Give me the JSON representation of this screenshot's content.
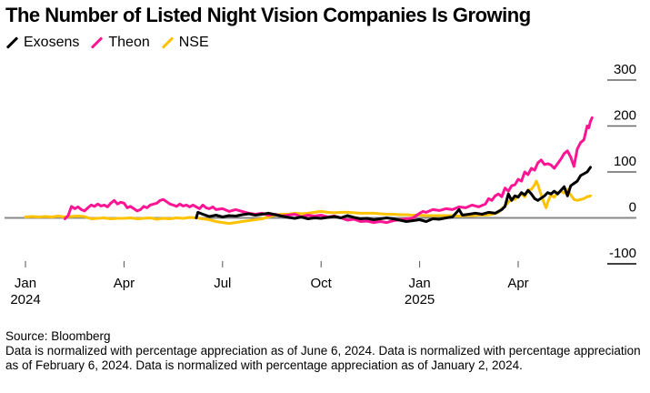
{
  "title": "The Number of Listed Night Vision Companies Is Growing",
  "legend": [
    {
      "name": "Exosens",
      "color": "#000000"
    },
    {
      "name": "Theon",
      "color": "#ff1493"
    },
    {
      "name": "NSE",
      "color": "#ffc200"
    }
  ],
  "footer": {
    "source": "Source: Bloomberg",
    "note": "Data is normalized with percentage appreciation as of June 6, 2024. Data is normalized with percentage appreciation as of February 6, 2024. Data is normalized with percentage appreciation as of January 2, 2024."
  },
  "chart_data": {
    "type": "line",
    "title": "The Number of Listed Night Vision Companies Is Growing",
    "xlabel": "",
    "ylabel": "",
    "ylim": [
      -100,
      300
    ],
    "yticks": [
      300,
      200,
      100,
      0,
      -100
    ],
    "xticks": [
      {
        "label": [
          "Jan",
          "2024"
        ],
        "x": 0
      },
      {
        "label": [
          "Apr",
          ""
        ],
        "x": 3
      },
      {
        "label": [
          "Jul",
          ""
        ],
        "x": 6
      },
      {
        "label": [
          "Oct",
          ""
        ],
        "x": 9
      },
      {
        "label": [
          "Jan",
          "2025"
        ],
        "x": 12
      },
      {
        "label": [
          "Apr",
          ""
        ],
        "x": 15
      }
    ],
    "x_unit": "months since Jan 2024",
    "xlim": [
      0,
      17.3
    ],
    "legend_position": "top-left",
    "series": [
      {
        "name": "Exosens",
        "color": "#000000",
        "points": [
          [
            5.2,
            0
          ],
          [
            5.25,
            12
          ],
          [
            5.4,
            8
          ],
          [
            5.6,
            3
          ],
          [
            5.8,
            6
          ],
          [
            6.0,
            2
          ],
          [
            6.2,
            5
          ],
          [
            6.4,
            4
          ],
          [
            6.6,
            7
          ],
          [
            6.8,
            9
          ],
          [
            7.0,
            6
          ],
          [
            7.2,
            8
          ],
          [
            7.4,
            10
          ],
          [
            7.6,
            7
          ],
          [
            7.8,
            4
          ],
          [
            8.0,
            1
          ],
          [
            8.2,
            -1
          ],
          [
            8.4,
            2
          ],
          [
            8.6,
            -2
          ],
          [
            8.8,
            0
          ],
          [
            9.0,
            -1
          ],
          [
            9.2,
            1
          ],
          [
            9.4,
            3
          ],
          [
            9.6,
            0
          ],
          [
            9.8,
            5
          ],
          [
            10.0,
            1
          ],
          [
            10.2,
            -2
          ],
          [
            10.4,
            -1
          ],
          [
            10.6,
            -4
          ],
          [
            10.8,
            -2
          ],
          [
            11.0,
            0
          ],
          [
            11.2,
            -2
          ],
          [
            11.4,
            -5
          ],
          [
            11.6,
            -8
          ],
          [
            11.8,
            -6
          ],
          [
            12.0,
            -4
          ],
          [
            12.2,
            -8
          ],
          [
            12.4,
            -2
          ],
          [
            12.6,
            -3
          ],
          [
            12.8,
            0
          ],
          [
            13.0,
            2
          ],
          [
            13.2,
            18
          ],
          [
            13.3,
            6
          ],
          [
            13.5,
            8
          ],
          [
            13.7,
            10
          ],
          [
            13.9,
            8
          ],
          [
            14.1,
            12
          ],
          [
            14.3,
            10
          ],
          [
            14.5,
            18
          ],
          [
            14.6,
            25
          ],
          [
            14.7,
            52
          ],
          [
            14.8,
            38
          ],
          [
            14.9,
            48
          ],
          [
            15.0,
            45
          ],
          [
            15.1,
            55
          ],
          [
            15.2,
            50
          ],
          [
            15.3,
            60
          ],
          [
            15.4,
            52
          ],
          [
            15.5,
            42
          ],
          [
            15.6,
            38
          ],
          [
            15.8,
            48
          ],
          [
            15.9,
            55
          ],
          [
            16.0,
            52
          ],
          [
            16.1,
            58
          ],
          [
            16.2,
            52
          ],
          [
            16.3,
            60
          ],
          [
            16.4,
            68
          ],
          [
            16.5,
            48
          ],
          [
            16.6,
            70
          ],
          [
            16.7,
            75
          ],
          [
            16.8,
            80
          ],
          [
            16.9,
            92
          ],
          [
            17.0,
            96
          ],
          [
            17.1,
            100
          ],
          [
            17.2,
            110
          ]
        ]
      },
      {
        "name": "Theon",
        "color": "#ff1493",
        "points": [
          [
            1.2,
            -2
          ],
          [
            1.3,
            5
          ],
          [
            1.4,
            25
          ],
          [
            1.5,
            20
          ],
          [
            1.6,
            24
          ],
          [
            1.7,
            18
          ],
          [
            1.8,
            15
          ],
          [
            1.9,
            22
          ],
          [
            2.0,
            28
          ],
          [
            2.1,
            25
          ],
          [
            2.2,
            30
          ],
          [
            2.3,
            26
          ],
          [
            2.4,
            28
          ],
          [
            2.5,
            24
          ],
          [
            2.6,
            32
          ],
          [
            2.7,
            38
          ],
          [
            2.8,
            30
          ],
          [
            2.9,
            34
          ],
          [
            3.0,
            32
          ],
          [
            3.1,
            22
          ],
          [
            3.2,
            25
          ],
          [
            3.3,
            20
          ],
          [
            3.4,
            15
          ],
          [
            3.5,
            18
          ],
          [
            3.6,
            25
          ],
          [
            3.7,
            22
          ],
          [
            3.8,
            28
          ],
          [
            3.9,
            30
          ],
          [
            4.0,
            32
          ],
          [
            4.1,
            38
          ],
          [
            4.2,
            40
          ],
          [
            4.3,
            35
          ],
          [
            4.4,
            30
          ],
          [
            4.5,
            28
          ],
          [
            4.6,
            25
          ],
          [
            4.7,
            30
          ],
          [
            4.8,
            26
          ],
          [
            4.9,
            28
          ],
          [
            5.0,
            24
          ],
          [
            5.1,
            28
          ],
          [
            5.2,
            24
          ],
          [
            5.3,
            20
          ],
          [
            5.4,
            28
          ],
          [
            5.5,
            22
          ],
          [
            5.6,
            20
          ],
          [
            5.7,
            24
          ],
          [
            5.8,
            18
          ],
          [
            6.0,
            20
          ],
          [
            6.2,
            14
          ],
          [
            6.4,
            18
          ],
          [
            6.6,
            14
          ],
          [
            6.8,
            10
          ],
          [
            7.0,
            8
          ],
          [
            7.2,
            10
          ],
          [
            7.4,
            6
          ],
          [
            7.6,
            8
          ],
          [
            7.8,
            4
          ],
          [
            8.0,
            6
          ],
          [
            8.2,
            8
          ],
          [
            8.4,
            2
          ],
          [
            8.6,
            6
          ],
          [
            8.8,
            4
          ],
          [
            9.0,
            6
          ],
          [
            9.2,
            2
          ],
          [
            9.4,
            4
          ],
          [
            9.6,
            0
          ],
          [
            9.8,
            -5
          ],
          [
            10.0,
            -3
          ],
          [
            10.2,
            -8
          ],
          [
            10.4,
            -7
          ],
          [
            10.6,
            -10
          ],
          [
            10.8,
            -8
          ],
          [
            11.0,
            -10
          ],
          [
            11.2,
            -6
          ],
          [
            11.4,
            -4
          ],
          [
            11.6,
            -2
          ],
          [
            11.8,
            0
          ],
          [
            12.0,
            10
          ],
          [
            12.1,
            14
          ],
          [
            12.2,
            12
          ],
          [
            12.4,
            18
          ],
          [
            12.6,
            16
          ],
          [
            12.8,
            20
          ],
          [
            13.0,
            18
          ],
          [
            13.2,
            24
          ],
          [
            13.4,
            22
          ],
          [
            13.6,
            28
          ],
          [
            13.8,
            24
          ],
          [
            14.0,
            30
          ],
          [
            14.1,
            42
          ],
          [
            14.2,
            38
          ],
          [
            14.3,
            48
          ],
          [
            14.4,
            52
          ],
          [
            14.5,
            46
          ],
          [
            14.6,
            65
          ],
          [
            14.7,
            58
          ],
          [
            14.8,
            70
          ],
          [
            14.9,
            72
          ],
          [
            15.0,
            84
          ],
          [
            15.1,
            80
          ],
          [
            15.2,
            100
          ],
          [
            15.3,
            94
          ],
          [
            15.4,
            108
          ],
          [
            15.5,
            104
          ],
          [
            15.6,
            120
          ],
          [
            15.7,
            126
          ],
          [
            15.8,
            116
          ],
          [
            15.9,
            118
          ],
          [
            16.0,
            115
          ],
          [
            16.1,
            108
          ],
          [
            16.2,
            118
          ],
          [
            16.3,
            128
          ],
          [
            16.4,
            140
          ],
          [
            16.5,
            146
          ],
          [
            16.6,
            132
          ],
          [
            16.7,
            112
          ],
          [
            16.8,
            150
          ],
          [
            16.9,
            164
          ],
          [
            17.0,
            170
          ],
          [
            17.1,
            200
          ],
          [
            17.15,
            196
          ],
          [
            17.2,
            210
          ],
          [
            17.25,
            218
          ]
        ]
      },
      {
        "name": "NSE",
        "color": "#ffc200",
        "points": [
          [
            0.0,
            2
          ],
          [
            0.2,
            3
          ],
          [
            0.4,
            2
          ],
          [
            0.6,
            3
          ],
          [
            0.8,
            2
          ],
          [
            1.0,
            4
          ],
          [
            1.2,
            2
          ],
          [
            1.4,
            3
          ],
          [
            1.6,
            4
          ],
          [
            1.8,
            3
          ],
          [
            2.0,
            -2
          ],
          [
            2.2,
            -1
          ],
          [
            2.4,
            0
          ],
          [
            2.6,
            -2
          ],
          [
            2.8,
            -1
          ],
          [
            3.0,
            -1
          ],
          [
            3.2,
            0
          ],
          [
            3.4,
            -2
          ],
          [
            3.6,
            -1
          ],
          [
            3.8,
            0
          ],
          [
            4.0,
            -3
          ],
          [
            4.2,
            -1
          ],
          [
            4.4,
            -2
          ],
          [
            4.6,
            0
          ],
          [
            4.8,
            -1
          ],
          [
            5.0,
            1
          ],
          [
            5.2,
            0
          ],
          [
            5.4,
            -2
          ],
          [
            5.6,
            -4
          ],
          [
            5.8,
            -8
          ],
          [
            6.0,
            -10
          ],
          [
            6.2,
            -12
          ],
          [
            6.4,
            -10
          ],
          [
            6.6,
            -8
          ],
          [
            6.8,
            -6
          ],
          [
            7.0,
            -4
          ],
          [
            7.2,
            -2
          ],
          [
            7.4,
            2
          ],
          [
            7.6,
            6
          ],
          [
            7.8,
            8
          ],
          [
            8.0,
            8
          ],
          [
            8.2,
            10
          ],
          [
            8.4,
            9
          ],
          [
            8.6,
            10
          ],
          [
            8.8,
            12
          ],
          [
            9.0,
            14
          ],
          [
            9.2,
            12
          ],
          [
            9.4,
            11
          ],
          [
            9.6,
            12
          ],
          [
            9.8,
            12
          ],
          [
            10.0,
            11
          ],
          [
            10.2,
            10
          ],
          [
            10.4,
            10
          ],
          [
            10.6,
            10
          ],
          [
            10.8,
            9
          ],
          [
            11.0,
            8
          ],
          [
            11.2,
            8
          ],
          [
            11.4,
            7
          ],
          [
            11.6,
            7
          ],
          [
            11.8,
            6
          ],
          [
            12.0,
            6
          ],
          [
            12.2,
            5
          ],
          [
            12.4,
            5
          ],
          [
            12.6,
            5
          ],
          [
            12.8,
            5
          ],
          [
            13.0,
            5
          ],
          [
            13.2,
            4
          ],
          [
            13.4,
            5
          ],
          [
            13.6,
            5
          ],
          [
            13.8,
            6
          ],
          [
            14.0,
            6
          ],
          [
            14.2,
            8
          ],
          [
            14.4,
            12
          ],
          [
            14.5,
            20
          ],
          [
            14.6,
            26
          ],
          [
            14.7,
            34
          ],
          [
            14.8,
            42
          ],
          [
            14.9,
            40
          ],
          [
            15.0,
            48
          ],
          [
            15.1,
            52
          ],
          [
            15.2,
            46
          ],
          [
            15.3,
            60
          ],
          [
            15.4,
            62
          ],
          [
            15.5,
            72
          ],
          [
            15.55,
            80
          ],
          [
            15.6,
            72
          ],
          [
            15.7,
            50
          ],
          [
            15.8,
            30
          ],
          [
            15.85,
            22
          ],
          [
            15.9,
            34
          ],
          [
            16.0,
            50
          ],
          [
            16.1,
            45
          ],
          [
            16.2,
            55
          ],
          [
            16.3,
            58
          ],
          [
            16.4,
            54
          ],
          [
            16.5,
            62
          ],
          [
            16.6,
            50
          ],
          [
            16.7,
            40
          ],
          [
            16.8,
            38
          ],
          [
            16.9,
            40
          ],
          [
            17.0,
            42
          ],
          [
            17.1,
            46
          ],
          [
            17.2,
            48
          ]
        ]
      }
    ]
  }
}
